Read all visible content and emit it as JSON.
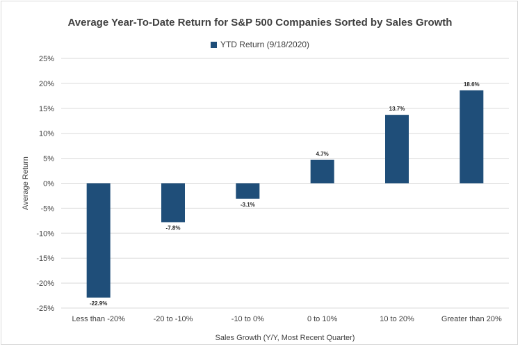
{
  "chart_data": {
    "type": "bar",
    "title": "Average Year-To-Date Return for S&P 500 Companies Sorted by Sales Growth",
    "xlabel": "Sales Growth (Y/Y, Most Recent Quarter)",
    "ylabel": "Average Return",
    "ylim": [
      -25,
      25
    ],
    "y_ticks": [
      "25%",
      "20%",
      "15%",
      "10%",
      "5%",
      "0%",
      "-5%",
      "-10%",
      "-15%",
      "-20%",
      "-25%"
    ],
    "y_tick_values": [
      25,
      20,
      15,
      10,
      5,
      0,
      -5,
      -10,
      -15,
      -20,
      -25
    ],
    "grid": true,
    "legend_position": "top-center",
    "categories": [
      "Less than -20%",
      "-20 to -10%",
      "-10 to 0%",
      "0 to 10%",
      "10 to 20%",
      "Greater than 20%"
    ],
    "series": [
      {
        "name": "YTD Return (9/18/2020)",
        "color": "#1f4e79",
        "values": [
          -22.9,
          -7.8,
          -3.1,
          4.7,
          13.7,
          18.6
        ],
        "labels": [
          "-22.9%",
          "-7.8%",
          "-3.1%",
          "4.7%",
          "13.7%",
          "18.6%"
        ]
      }
    ]
  }
}
